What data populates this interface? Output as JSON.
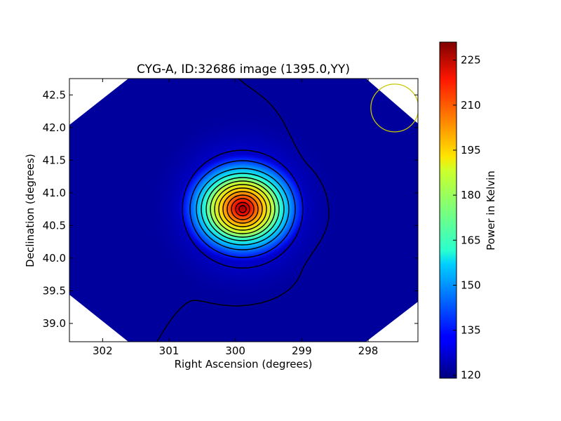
{
  "chart_data": {
    "type": "heatmap",
    "title": "CYG-A, ID:32686 image (1395.0,YY)",
    "xlabel": "Right Ascension (degrees)",
    "ylabel": "Declination (degrees)",
    "xlim": [
      302.5,
      297.25
    ],
    "ylim": [
      38.72,
      42.75
    ],
    "x_ticks": [
      302,
      301,
      300,
      299,
      298
    ],
    "x_tick_labels": [
      "302",
      "301",
      "300",
      "299",
      "298"
    ],
    "y_ticks": [
      39.0,
      39.5,
      40.0,
      40.5,
      41.0,
      41.5,
      42.0,
      42.5
    ],
    "y_tick_labels": [
      "39.0",
      "39.5",
      "40.0",
      "40.5",
      "41.0",
      "41.5",
      "42.0",
      "42.5"
    ],
    "colormap": "jet",
    "source": {
      "ra": 299.87,
      "dec": 40.73,
      "peak_kelvin": 229
    },
    "background_kelvin": 121,
    "contour_color": "#000000",
    "beam_circle": {
      "ra": 297.6,
      "dec": 42.3,
      "color": "#c8c800"
    },
    "colorbar": {
      "label": "Power in Kelvin",
      "range": [
        119,
        231
      ],
      "ticks": [
        120,
        135,
        150,
        165,
        180,
        195,
        210,
        225
      ],
      "tick_labels": [
        "120",
        "135",
        "150",
        "165",
        "180",
        "195",
        "210",
        "225"
      ]
    }
  }
}
